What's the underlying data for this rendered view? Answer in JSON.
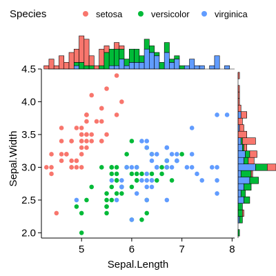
{
  "chart_data": {
    "type": "scatter",
    "xlabel": "Sepal.Length",
    "ylabel": "Sepal.Width",
    "xlim": [
      4.2,
      8.05
    ],
    "ylim": [
      1.92,
      4.5
    ],
    "x_ticks": [
      5,
      6,
      7,
      8
    ],
    "y_ticks": [
      2.0,
      2.5,
      3.0,
      3.5,
      4.0,
      4.5
    ],
    "y_tick_labels": [
      "2.0",
      "2.5",
      "3.0",
      "3.5",
      "4.0",
      "4.5"
    ],
    "legend": {
      "title": "Species",
      "position": "top"
    },
    "series": [
      {
        "name": "setosa",
        "color": "#F8766D",
        "points": [
          [
            5.1,
            3.5
          ],
          [
            4.9,
            3.0
          ],
          [
            4.7,
            3.2
          ],
          [
            4.6,
            3.1
          ],
          [
            5.0,
            3.6
          ],
          [
            5.4,
            3.9
          ],
          [
            4.6,
            3.4
          ],
          [
            5.0,
            3.4
          ],
          [
            4.4,
            2.9
          ],
          [
            4.9,
            3.1
          ],
          [
            5.4,
            3.7
          ],
          [
            4.8,
            3.4
          ],
          [
            4.8,
            3.0
          ],
          [
            4.3,
            3.0
          ],
          [
            5.8,
            4.0
          ],
          [
            5.7,
            4.4
          ],
          [
            5.4,
            3.9
          ],
          [
            5.1,
            3.5
          ],
          [
            5.7,
            3.8
          ],
          [
            5.1,
            3.8
          ],
          [
            5.4,
            3.4
          ],
          [
            5.1,
            3.7
          ],
          [
            4.6,
            3.6
          ],
          [
            5.1,
            3.3
          ],
          [
            4.8,
            3.4
          ],
          [
            5.0,
            3.0
          ],
          [
            5.0,
            3.4
          ],
          [
            5.2,
            3.5
          ],
          [
            5.2,
            3.4
          ],
          [
            4.7,
            3.2
          ],
          [
            4.8,
            3.1
          ],
          [
            5.4,
            3.4
          ],
          [
            5.2,
            4.1
          ],
          [
            5.5,
            4.2
          ],
          [
            4.9,
            3.1
          ],
          [
            5.0,
            3.2
          ],
          [
            5.5,
            3.5
          ],
          [
            4.9,
            3.6
          ],
          [
            4.4,
            3.0
          ],
          [
            5.1,
            3.4
          ],
          [
            5.0,
            3.5
          ],
          [
            4.5,
            2.3
          ],
          [
            4.4,
            3.2
          ],
          [
            5.0,
            3.5
          ],
          [
            5.1,
            3.8
          ],
          [
            4.8,
            3.0
          ],
          [
            5.1,
            3.8
          ],
          [
            4.6,
            3.2
          ],
          [
            5.3,
            3.7
          ],
          [
            5.0,
            3.3
          ]
        ]
      },
      {
        "name": "versicolor",
        "color": "#00BA38",
        "points": [
          [
            7.0,
            3.2
          ],
          [
            6.4,
            3.2
          ],
          [
            6.9,
            3.1
          ],
          [
            5.5,
            2.3
          ],
          [
            6.5,
            2.8
          ],
          [
            5.7,
            2.8
          ],
          [
            6.3,
            3.3
          ],
          [
            4.9,
            2.4
          ],
          [
            6.6,
            2.9
          ],
          [
            5.2,
            2.7
          ],
          [
            5.0,
            2.0
          ],
          [
            5.9,
            3.0
          ],
          [
            6.0,
            2.2
          ],
          [
            6.1,
            2.9
          ],
          [
            5.6,
            2.9
          ],
          [
            6.7,
            3.1
          ],
          [
            5.6,
            3.0
          ],
          [
            5.8,
            2.7
          ],
          [
            6.2,
            2.2
          ],
          [
            5.6,
            2.5
          ],
          [
            5.9,
            3.2
          ],
          [
            6.1,
            2.8
          ],
          [
            6.3,
            2.5
          ],
          [
            6.1,
            2.8
          ],
          [
            6.4,
            2.9
          ],
          [
            6.6,
            3.0
          ],
          [
            6.8,
            2.8
          ],
          [
            6.7,
            3.0
          ],
          [
            6.0,
            2.9
          ],
          [
            5.7,
            2.6
          ],
          [
            5.5,
            2.4
          ],
          [
            5.5,
            2.4
          ],
          [
            5.8,
            2.7
          ],
          [
            6.0,
            2.7
          ],
          [
            5.4,
            3.0
          ],
          [
            6.0,
            3.4
          ],
          [
            6.7,
            3.1
          ],
          [
            6.3,
            2.3
          ],
          [
            5.6,
            3.0
          ],
          [
            5.5,
            2.5
          ],
          [
            5.5,
            2.6
          ],
          [
            6.1,
            3.0
          ],
          [
            5.8,
            2.6
          ],
          [
            5.0,
            2.3
          ],
          [
            5.6,
            2.7
          ],
          [
            5.7,
            3.0
          ],
          [
            5.7,
            2.9
          ],
          [
            6.2,
            2.9
          ],
          [
            5.1,
            2.5
          ],
          [
            5.7,
            2.8
          ]
        ]
      },
      {
        "name": "virginica",
        "color": "#619CFF",
        "points": [
          [
            6.3,
            3.3
          ],
          [
            5.8,
            2.7
          ],
          [
            7.1,
            3.0
          ],
          [
            6.3,
            2.9
          ],
          [
            6.5,
            3.0
          ],
          [
            7.6,
            3.0
          ],
          [
            4.9,
            2.5
          ],
          [
            7.3,
            2.9
          ],
          [
            6.7,
            2.5
          ],
          [
            7.2,
            3.6
          ],
          [
            6.5,
            3.2
          ],
          [
            6.4,
            2.7
          ],
          [
            6.8,
            3.0
          ],
          [
            5.7,
            2.5
          ],
          [
            5.8,
            2.8
          ],
          [
            6.4,
            3.2
          ],
          [
            6.5,
            3.0
          ],
          [
            7.7,
            3.8
          ],
          [
            7.7,
            2.6
          ],
          [
            6.0,
            2.2
          ],
          [
            6.9,
            3.2
          ],
          [
            5.6,
            2.8
          ],
          [
            7.7,
            2.8
          ],
          [
            6.3,
            2.7
          ],
          [
            6.7,
            3.3
          ],
          [
            7.2,
            3.2
          ],
          [
            6.2,
            2.8
          ],
          [
            6.1,
            3.0
          ],
          [
            6.4,
            2.8
          ],
          [
            7.2,
            3.0
          ],
          [
            7.4,
            2.8
          ],
          [
            7.9,
            3.8
          ],
          [
            6.4,
            2.8
          ],
          [
            6.3,
            2.8
          ],
          [
            6.1,
            2.6
          ],
          [
            7.7,
            3.0
          ],
          [
            6.3,
            3.4
          ],
          [
            6.4,
            3.1
          ],
          [
            6.0,
            3.0
          ],
          [
            6.9,
            3.1
          ],
          [
            6.7,
            3.1
          ],
          [
            6.9,
            3.1
          ],
          [
            5.8,
            2.7
          ],
          [
            6.8,
            3.2
          ],
          [
            6.7,
            3.3
          ],
          [
            6.7,
            3.0
          ],
          [
            6.3,
            2.5
          ],
          [
            6.5,
            3.0
          ],
          [
            6.2,
            3.4
          ],
          [
            5.9,
            3.0
          ]
        ]
      }
    ],
    "marginal_histograms": {
      "top_x_bin_width": 0.1,
      "right_y_bin_width": 0.1,
      "style": "stacked"
    }
  }
}
